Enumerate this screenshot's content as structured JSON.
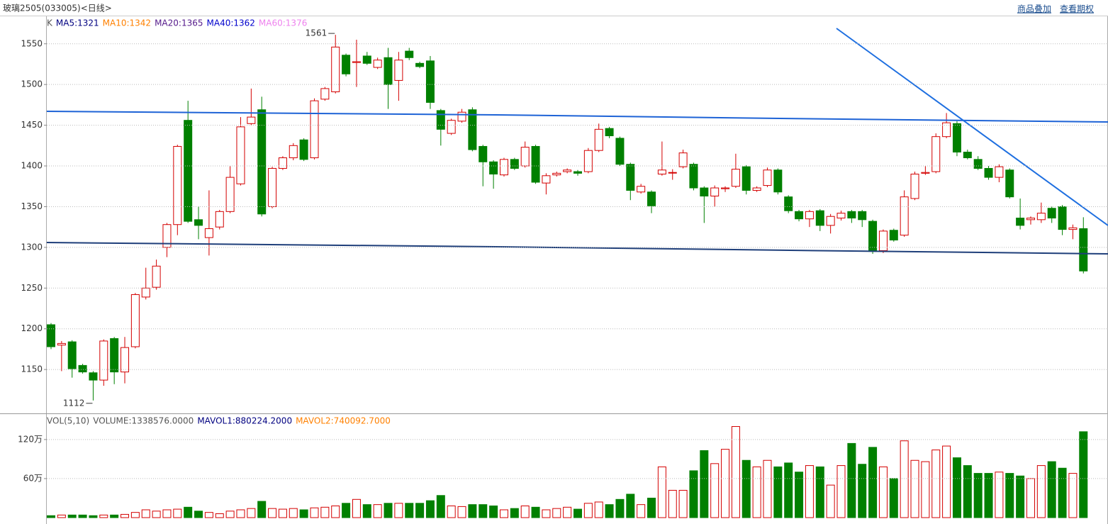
{
  "header": {
    "title": "玻璃2505(033005)<日线>",
    "links": [
      "商品叠加",
      "查看期权"
    ]
  },
  "chart_data": {
    "type": "candlestick",
    "legend": [
      "K",
      "MA5:1321",
      "MA10:1342",
      "MA20:1365",
      "MA40:1362",
      "MA60:1376"
    ],
    "legend_colors": [
      "#555555",
      "#000080",
      "#ff8000",
      "#551a8b",
      "#0000cd",
      "#ee82ee"
    ],
    "ylim": [
      1097,
      1582
    ],
    "yticks": [
      1150,
      1200,
      1250,
      1300,
      1350,
      1400,
      1450,
      1500,
      1550
    ],
    "grid": true,
    "up_color": "#d40000",
    "down_color": "#008000",
    "open": [
      1205,
      1180,
      1184,
      1155,
      1146,
      1137,
      1188,
      1147,
      1178,
      1239,
      1251,
      1300,
      1328,
      1456,
      1334,
      1312,
      1325,
      1344,
      1378,
      1452,
      1469,
      1350,
      1397,
      1410,
      1432,
      1410,
      1482,
      1491,
      1536,
      1527,
      1535,
      1521,
      1533,
      1505,
      1541,
      1526,
      1529,
      1468,
      1440,
      1455,
      1469,
      1424,
      1405,
      1389,
      1408,
      1400,
      1424,
      1379,
      1389,
      1393,
      1393,
      1393,
      1419,
      1446,
      1434,
      1402,
      1368,
      1368,
      1390,
      1392,
      1399,
      1402,
      1373,
      1363,
      1372,
      1375,
      1399,
      1370,
      1376,
      1395,
      1362,
      1344,
      1335,
      1345,
      1327,
      1336,
      1344,
      1344,
      1332,
      1296,
      1321,
      1315,
      1360,
      1391,
      1393,
      1436,
      1452,
      1417,
      1408,
      1397,
      1386,
      1395,
      1336,
      1334,
      1334,
      1348,
      1350,
      1322,
      1323
    ],
    "high": [
      1207,
      1185,
      1186,
      1157,
      1148,
      1187,
      1190,
      1190,
      1244,
      1275,
      1285,
      1330,
      1426,
      1480,
      1350,
      1370,
      1346,
      1400,
      1460,
      1495,
      1485,
      1399,
      1412,
      1428,
      1434,
      1483,
      1497,
      1561,
      1538,
      1555,
      1540,
      1533,
      1545,
      1540,
      1545,
      1528,
      1535,
      1470,
      1458,
      1470,
      1472,
      1426,
      1407,
      1410,
      1410,
      1430,
      1426,
      1391,
      1393,
      1397,
      1395,
      1422,
      1452,
      1448,
      1436,
      1404,
      1378,
      1370,
      1430,
      1396,
      1420,
      1404,
      1375,
      1376,
      1375,
      1415,
      1401,
      1375,
      1398,
      1397,
      1364,
      1346,
      1346,
      1347,
      1341,
      1345,
      1346,
      1346,
      1334,
      1322,
      1323,
      1370,
      1393,
      1400,
      1440,
      1465,
      1455,
      1420,
      1412,
      1400,
      1402,
      1397,
      1360,
      1338,
      1355,
      1350,
      1352,
      1328,
      1337
    ],
    "low": [
      1175,
      1148,
      1140,
      1145,
      1112,
      1130,
      1132,
      1133,
      1176,
      1236,
      1248,
      1288,
      1315,
      1330,
      1310,
      1290,
      1322,
      1342,
      1376,
      1450,
      1338,
      1348,
      1395,
      1407,
      1406,
      1408,
      1480,
      1489,
      1510,
      1497,
      1524,
      1519,
      1470,
      1480,
      1530,
      1520,
      1470,
      1425,
      1438,
      1453,
      1418,
      1375,
      1372,
      1387,
      1395,
      1398,
      1378,
      1365,
      1387,
      1391,
      1388,
      1391,
      1417,
      1434,
      1400,
      1358,
      1366,
      1342,
      1388,
      1383,
      1397,
      1370,
      1330,
      1350,
      1368,
      1373,
      1365,
      1368,
      1374,
      1365,
      1342,
      1332,
      1325,
      1320,
      1317,
      1333,
      1330,
      1325,
      1292,
      1293,
      1307,
      1313,
      1358,
      1389,
      1391,
      1434,
      1412,
      1408,
      1395,
      1383,
      1380,
      1360,
      1322,
      1328,
      1330,
      1330,
      1315,
      1310,
      1268
    ],
    "close": [
      1178,
      1182,
      1151,
      1147,
      1137,
      1185,
      1147,
      1177,
      1242,
      1250,
      1277,
      1328,
      1424,
      1332,
      1327,
      1323,
      1344,
      1386,
      1448,
      1460,
      1341,
      1397,
      1410,
      1425,
      1408,
      1480,
      1495,
      1546,
      1513,
      1528,
      1526,
      1530,
      1500,
      1530,
      1533,
      1522,
      1478,
      1445,
      1456,
      1466,
      1420,
      1405,
      1390,
      1408,
      1397,
      1423,
      1380,
      1388,
      1391,
      1395,
      1391,
      1419,
      1445,
      1437,
      1402,
      1370,
      1375,
      1351,
      1395,
      1392,
      1416,
      1373,
      1363,
      1373,
      1373,
      1396,
      1370,
      1373,
      1395,
      1368,
      1345,
      1335,
      1344,
      1327,
      1338,
      1342,
      1336,
      1334,
      1295,
      1320,
      1309,
      1362,
      1390,
      1392,
      1436,
      1453,
      1417,
      1410,
      1397,
      1386,
      1399,
      1362,
      1327,
      1336,
      1342,
      1336,
      1322,
      1324,
      1271
    ],
    "annotations": [
      {
        "text": "1561"
      },
      {
        "text": "1112"
      }
    ],
    "vol_legend": [
      "VOL(5,10)",
      "VOLUME:1338576.0000",
      "MAVOL1:880224.2000",
      "MAVOL2:740092.7000"
    ],
    "vol_legend_colors": [
      "#555555",
      "#555555",
      "#000080",
      "#ff8000"
    ],
    "vol_ylim": [
      0,
      1580000
    ],
    "vol_yticks": [
      {
        "value": 600000,
        "label": "60万"
      },
      {
        "value": 1200000,
        "label": "120万"
      }
    ],
    "volume": [
      30000,
      40000,
      40000,
      40000,
      30000,
      40000,
      40000,
      50000,
      80000,
      120000,
      100000,
      120000,
      130000,
      160000,
      100000,
      80000,
      60000,
      100000,
      120000,
      140000,
      250000,
      140000,
      130000,
      140000,
      120000,
      150000,
      160000,
      180000,
      220000,
      280000,
      200000,
      200000,
      220000,
      220000,
      220000,
      220000,
      260000,
      340000,
      180000,
      170000,
      200000,
      200000,
      180000,
      120000,
      140000,
      180000,
      160000,
      120000,
      140000,
      160000,
      130000,
      220000,
      240000,
      200000,
      280000,
      360000,
      200000,
      300000,
      780000,
      420000,
      420000,
      720000,
      1030000,
      830000,
      1050000,
      1400000,
      880000,
      780000,
      880000,
      780000,
      840000,
      700000,
      800000,
      780000,
      500000,
      800000,
      1140000,
      820000,
      1080000,
      780000,
      600000,
      1180000,
      880000,
      860000,
      1040000,
      1100000,
      920000,
      800000,
      680000,
      680000,
      700000,
      680000,
      640000,
      600000,
      800000,
      860000,
      760000,
      680000,
      1320000
    ]
  }
}
